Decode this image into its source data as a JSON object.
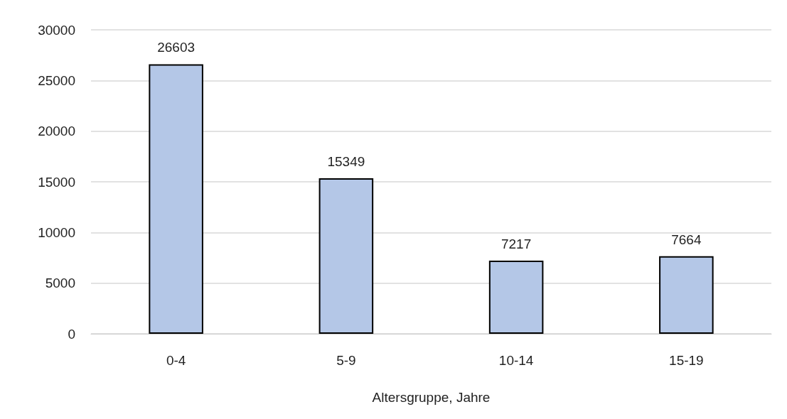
{
  "chart_data": {
    "type": "bar",
    "xlabel": "Altersgruppe, Jahre",
    "categories": [
      "0-4",
      "5-9",
      "10-14",
      "15-19"
    ],
    "values": [
      26603,
      15349,
      7217,
      7664
    ],
    "color": "#b4c7e7",
    "ylim": [
      0,
      30000
    ],
    "yticks": [
      0,
      5000,
      10000,
      15000,
      20000,
      25000,
      30000
    ],
    "grid": "y",
    "data_labels": true
  }
}
